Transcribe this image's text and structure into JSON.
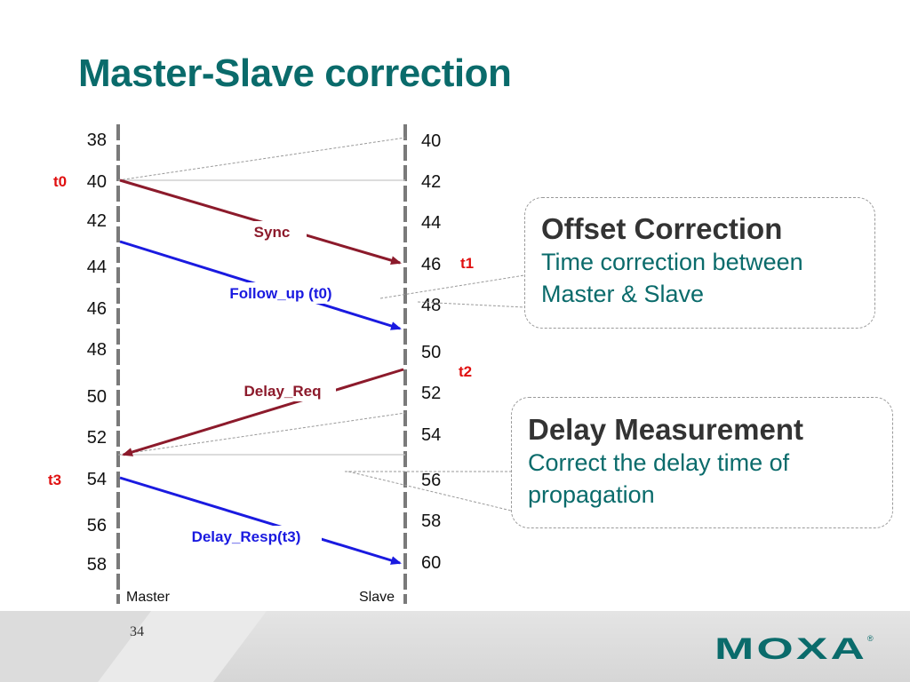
{
  "slide": {
    "title": "Master-Slave correction",
    "page_number": "34",
    "logo_text": "MOXA",
    "logo_mark": "®"
  },
  "diagram": {
    "master_label": "Master",
    "slave_label": "Slave",
    "master_ticks": [
      "38",
      "40",
      "42",
      "44",
      "46",
      "48",
      "50",
      "52",
      "54",
      "56",
      "58"
    ],
    "slave_ticks": [
      "40",
      "42",
      "44",
      "46",
      "48",
      "50",
      "52",
      "54",
      "56",
      "58",
      "60"
    ],
    "time_markers": {
      "t0": "t0",
      "t1": "t1",
      "t2": "t2",
      "t3": "t3"
    },
    "messages": [
      {
        "id": "sync",
        "label": "Sync",
        "direction": "master-to-slave",
        "from_time": "40",
        "to_time": "46",
        "color": "#8c1a2b"
      },
      {
        "id": "follow-up",
        "label": "Follow_up (t0)",
        "direction": "master-to-slave",
        "color": "#1a1ae0"
      },
      {
        "id": "delay-req",
        "label": "Delay_Req",
        "direction": "slave-to-master",
        "color": "#8c1a2b"
      },
      {
        "id": "delay-resp",
        "label": "Delay_Resp(t3)",
        "direction": "master-to-slave",
        "color": "#1a1ae0"
      }
    ]
  },
  "callouts": {
    "offset": {
      "heading": "Offset Correction",
      "lines": [
        "Time correction between",
        "Master & Slave"
      ]
    },
    "delay": {
      "heading": "Delay Measurement",
      "lines": [
        "Correct the delay time of",
        "propagation"
      ]
    }
  },
  "colors": {
    "title": "#0a6b6b",
    "marker_red": "#e01010",
    "sync_red": "#8c1a2b",
    "follow_blue": "#1a1ae0",
    "logo": "#0a6b6b"
  }
}
